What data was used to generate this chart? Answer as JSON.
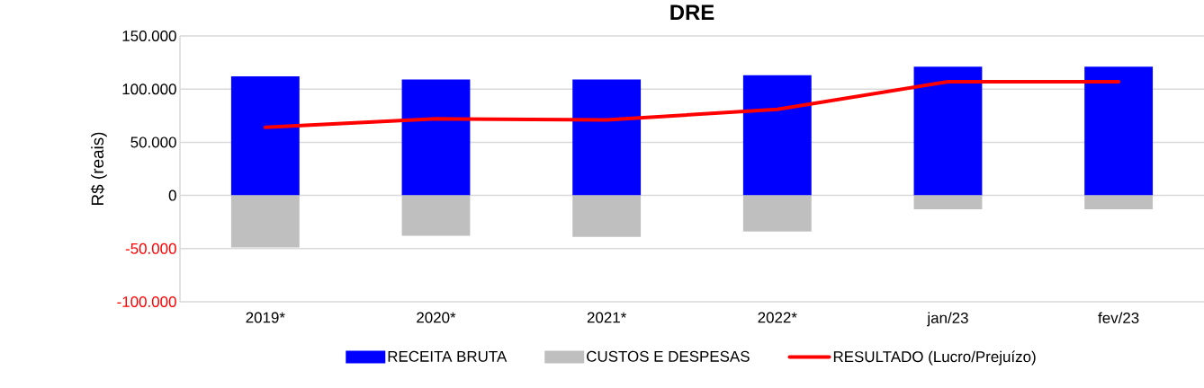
{
  "chart_data": {
    "type": "bar",
    "title": "DRE",
    "ylabel": "R$ (reais)",
    "categories": [
      "2019*",
      "2020*",
      "2021*",
      "2022*",
      "jan/23",
      "fev/23"
    ],
    "series": [
      {
        "name": "RECEITA BRUTA",
        "color": "#0000ff",
        "values": [
          112000,
          109000,
          109000,
          113000,
          121000,
          121000
        ]
      },
      {
        "name": "CUSTOS E DESPESAS",
        "color": "#bfbfbf",
        "values": [
          -49000,
          -38000,
          -39000,
          -34000,
          -13000,
          -13000
        ]
      },
      {
        "name": "RESULTADO (Lucro/Prejuízo)",
        "type": "line",
        "color": "#ff0000",
        "values": [
          64000,
          72000,
          71000,
          81000,
          107000,
          107000
        ]
      }
    ],
    "stacked": true,
    "ylim": [
      -100000,
      150000
    ],
    "yticks": [
      {
        "value": -100000,
        "label": "-100.000"
      },
      {
        "value": -50000,
        "label": "-50.000"
      },
      {
        "value": 0,
        "label": "0"
      },
      {
        "value": 50000,
        "label": "50.000"
      },
      {
        "value": 100000,
        "label": "100.000"
      },
      {
        "value": 150000,
        "label": "150.000"
      }
    ],
    "grid": "y",
    "legend": "bottom"
  }
}
